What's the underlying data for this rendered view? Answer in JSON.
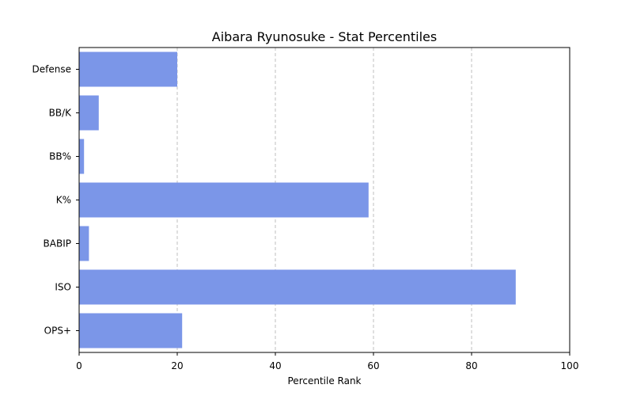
{
  "chart_data": {
    "type": "bar",
    "orientation": "horizontal",
    "title": "Aibara Ryunosuke - Stat Percentiles",
    "xlabel": "Percentile Rank",
    "ylabel": "",
    "xlim": [
      0,
      100
    ],
    "xticks": [
      "0",
      "20",
      "40",
      "60",
      "80",
      "100"
    ],
    "categories": [
      "OPS+",
      "ISO",
      "BABIP",
      "K%",
      "BB%",
      "BB/K",
      "Defense"
    ],
    "values": [
      21,
      89,
      2,
      59,
      1,
      4,
      20
    ],
    "bar_color": "#7b96e8",
    "grid": "x-axis dashed"
  }
}
